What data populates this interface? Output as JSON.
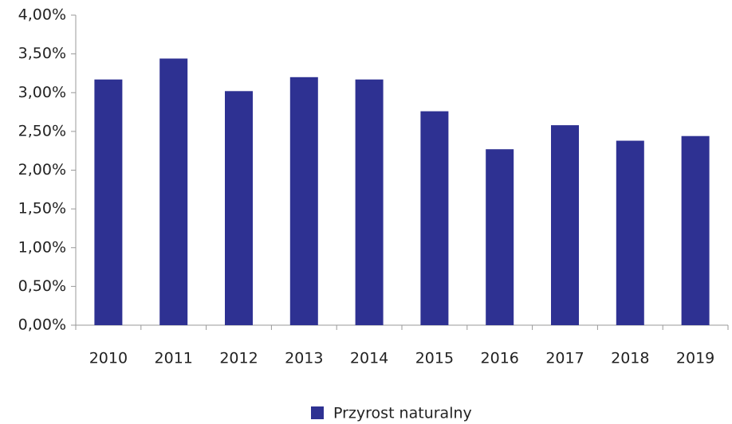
{
  "chart_data": {
    "type": "bar",
    "categories": [
      "2010",
      "2011",
      "2012",
      "2013",
      "2014",
      "2015",
      "2016",
      "2017",
      "2018",
      "2019"
    ],
    "series": [
      {
        "name": "Przyrost naturalny",
        "color": "#2e3192",
        "values": [
          3.17,
          3.44,
          3.02,
          3.2,
          3.17,
          2.76,
          2.27,
          2.58,
          2.38,
          2.44
        ]
      }
    ],
    "ylim": [
      0,
      4
    ],
    "yticks": [
      {
        "value": 0,
        "label": "0,00%"
      },
      {
        "value": 0.5,
        "label": "0,50%"
      },
      {
        "value": 1,
        "label": "1,00%"
      },
      {
        "value": 1.5,
        "label": "1,50%"
      },
      {
        "value": 2,
        "label": "2,00%"
      },
      {
        "value": 2.5,
        "label": "2,50%"
      },
      {
        "value": 3,
        "label": "3,00%"
      },
      {
        "value": 3.5,
        "label": "3,50%"
      },
      {
        "value": 4,
        "label": "4,00%"
      }
    ],
    "legend": "bottom"
  }
}
